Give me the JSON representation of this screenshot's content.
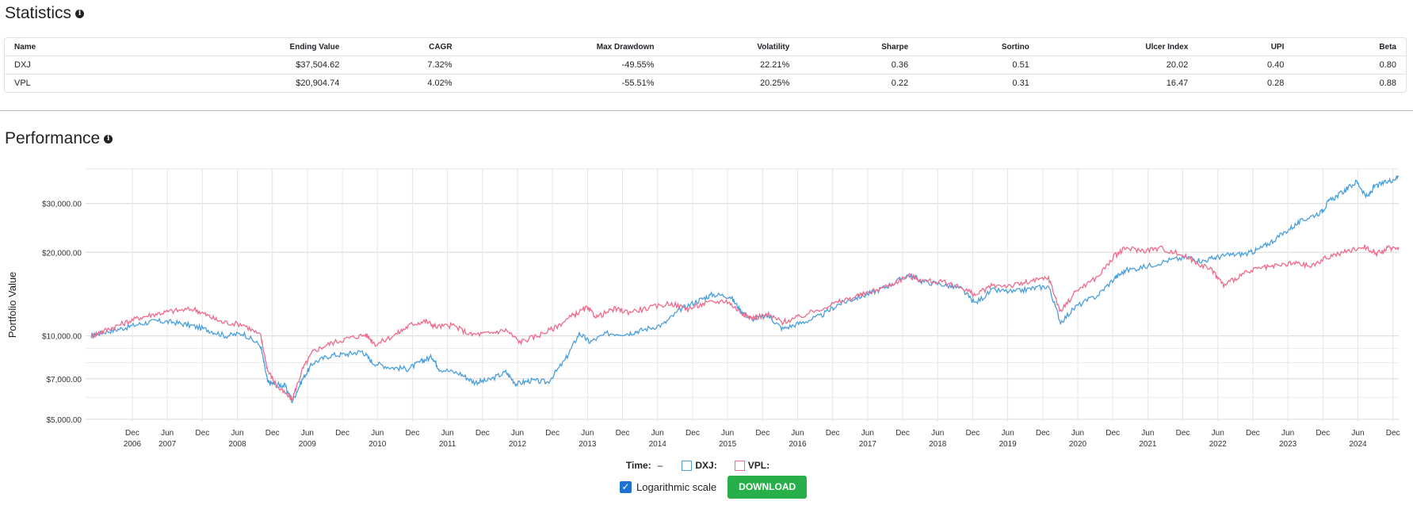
{
  "statistics": {
    "title": "Statistics",
    "info_icon": "info-icon",
    "columns": [
      "Name",
      "Ending Value",
      "CAGR",
      "Max Drawdown",
      "Volatility",
      "Sharpe",
      "Sortino",
      "Ulcer Index",
      "UPI",
      "Beta"
    ],
    "rows": [
      [
        "DXJ",
        "$37,504.62",
        "7.32%",
        "-49.55%",
        "22.21%",
        "0.36",
        "0.51",
        "20.02",
        "0.40",
        "0.80"
      ],
      [
        "VPL",
        "$20,904.74",
        "4.02%",
        "-55.51%",
        "20.25%",
        "0.22",
        "0.31",
        "16.47",
        "0.28",
        "0.88"
      ]
    ]
  },
  "performance": {
    "title": "Performance",
    "info_icon": "info-icon",
    "legend": {
      "time_label": "Time:",
      "time_value": "–"
    },
    "log_scale_label": "Logarithmic scale",
    "log_scale_checked": true,
    "download_label": "DOWNLOAD",
    "colors": {
      "DXJ": "#4a9fdc",
      "VPL": "#f06a8a",
      "download": "#27b04a",
      "checkbox": "#1e73d2"
    }
  },
  "chart_data": {
    "type": "line",
    "ylabel": "Portfolio Value",
    "xlabel": "",
    "log_scale": true,
    "grid": true,
    "y_ticks": [
      5000,
      7000,
      10000,
      20000,
      30000
    ],
    "y_tick_labels": [
      "$5,000.00",
      "$7,000.00",
      "$10,000.00",
      "$20,000.00",
      "$30,000.00"
    ],
    "ylim": [
      4900,
      40000
    ],
    "xlim": [
      2006.25,
      2025.0
    ],
    "x_ticks": [
      {
        "t": 2006.917,
        "m": "Dec",
        "y": "2006"
      },
      {
        "t": 2007.417,
        "m": "Jun",
        "y": "2007"
      },
      {
        "t": 2007.917,
        "m": "Dec",
        "y": ""
      },
      {
        "t": 2008.417,
        "m": "Jun",
        "y": "2008"
      },
      {
        "t": 2008.917,
        "m": "Dec",
        "y": ""
      },
      {
        "t": 2009.417,
        "m": "Jun",
        "y": "2009"
      },
      {
        "t": 2009.917,
        "m": "Dec",
        "y": ""
      },
      {
        "t": 2010.417,
        "m": "Jun",
        "y": "2010"
      },
      {
        "t": 2010.917,
        "m": "Dec",
        "y": ""
      },
      {
        "t": 2011.417,
        "m": "Jun",
        "y": "2011"
      },
      {
        "t": 2011.917,
        "m": "Dec",
        "y": ""
      },
      {
        "t": 2012.417,
        "m": "Jun",
        "y": "2012"
      },
      {
        "t": 2012.917,
        "m": "Dec",
        "y": ""
      },
      {
        "t": 2013.417,
        "m": "Jun",
        "y": "2013"
      },
      {
        "t": 2013.917,
        "m": "Dec",
        "y": ""
      },
      {
        "t": 2014.417,
        "m": "Jun",
        "y": "2014"
      },
      {
        "t": 2014.917,
        "m": "Dec",
        "y": ""
      },
      {
        "t": 2015.417,
        "m": "Jun",
        "y": "2015"
      },
      {
        "t": 2015.917,
        "m": "Dec",
        "y": ""
      },
      {
        "t": 2016.417,
        "m": "Jun",
        "y": "2016"
      },
      {
        "t": 2016.917,
        "m": "Dec",
        "y": ""
      },
      {
        "t": 2017.417,
        "m": "Jun",
        "y": "2017"
      },
      {
        "t": 2017.917,
        "m": "Dec",
        "y": ""
      },
      {
        "t": 2018.417,
        "m": "Jun",
        "y": "2018"
      },
      {
        "t": 2018.917,
        "m": "Dec",
        "y": ""
      },
      {
        "t": 2019.417,
        "m": "Jun",
        "y": "2019"
      },
      {
        "t": 2019.917,
        "m": "Dec",
        "y": ""
      },
      {
        "t": 2020.417,
        "m": "Jun",
        "y": "2020"
      },
      {
        "t": 2020.917,
        "m": "Dec",
        "y": ""
      },
      {
        "t": 2021.417,
        "m": "Jun",
        "y": "2021"
      },
      {
        "t": 2021.917,
        "m": "Dec",
        "y": ""
      },
      {
        "t": 2022.417,
        "m": "Jun",
        "y": "2022"
      },
      {
        "t": 2022.917,
        "m": "Dec",
        "y": ""
      },
      {
        "t": 2023.417,
        "m": "Jun",
        "y": "2023"
      },
      {
        "t": 2023.917,
        "m": "Dec",
        "y": ""
      },
      {
        "t": 2024.417,
        "m": "Jun",
        "y": "2024"
      },
      {
        "t": 2024.917,
        "m": "Dec",
        "y": ""
      }
    ],
    "series": [
      {
        "name": "DXJ",
        "points": [
          [
            2006.33,
            10000
          ],
          [
            2006.5,
            10300
          ],
          [
            2006.75,
            10600
          ],
          [
            2007.0,
            11000
          ],
          [
            2007.25,
            11300
          ],
          [
            2007.5,
            11200
          ],
          [
            2007.75,
            10900
          ],
          [
            2008.0,
            10500
          ],
          [
            2008.25,
            10000
          ],
          [
            2008.5,
            10200
          ],
          [
            2008.75,
            9200
          ],
          [
            2008.85,
            6800
          ],
          [
            2008.95,
            6700
          ],
          [
            2009.1,
            6600
          ],
          [
            2009.2,
            5800
          ],
          [
            2009.35,
            7000
          ],
          [
            2009.5,
            8000
          ],
          [
            2009.75,
            8500
          ],
          [
            2010.0,
            8600
          ],
          [
            2010.2,
            8800
          ],
          [
            2010.35,
            8000
          ],
          [
            2010.6,
            7700
          ],
          [
            2010.85,
            7600
          ],
          [
            2011.05,
            8100
          ],
          [
            2011.2,
            8400
          ],
          [
            2011.3,
            7600
          ],
          [
            2011.6,
            7300
          ],
          [
            2011.8,
            6800
          ],
          [
            2012.0,
            6900
          ],
          [
            2012.25,
            7400
          ],
          [
            2012.4,
            6700
          ],
          [
            2012.6,
            6900
          ],
          [
            2012.85,
            6800
          ],
          [
            2013.1,
            8200
          ],
          [
            2013.3,
            10200
          ],
          [
            2013.45,
            9500
          ],
          [
            2013.7,
            10200
          ],
          [
            2014.0,
            10200
          ],
          [
            2014.2,
            10500
          ],
          [
            2014.5,
            11000
          ],
          [
            2014.75,
            12500
          ],
          [
            2015.0,
            13400
          ],
          [
            2015.2,
            14100
          ],
          [
            2015.45,
            13900
          ],
          [
            2015.6,
            12400
          ],
          [
            2015.75,
            11500
          ],
          [
            2016.0,
            11800
          ],
          [
            2016.2,
            10600
          ],
          [
            2016.45,
            11100
          ],
          [
            2016.75,
            11800
          ],
          [
            2017.0,
            13000
          ],
          [
            2017.25,
            13700
          ],
          [
            2017.5,
            14400
          ],
          [
            2017.75,
            15300
          ],
          [
            2018.0,
            16600
          ],
          [
            2018.2,
            15700
          ],
          [
            2018.5,
            15300
          ],
          [
            2018.75,
            14800
          ],
          [
            2018.95,
            13100
          ],
          [
            2019.2,
            14600
          ],
          [
            2019.5,
            14400
          ],
          [
            2019.75,
            14800
          ],
          [
            2020.0,
            15100
          ],
          [
            2020.17,
            11200
          ],
          [
            2020.4,
            12800
          ],
          [
            2020.7,
            14000
          ],
          [
            2020.95,
            16200
          ],
          [
            2021.1,
            17200
          ],
          [
            2021.4,
            17800
          ],
          [
            2021.7,
            18700
          ],
          [
            2022.0,
            19200
          ],
          [
            2022.2,
            18600
          ],
          [
            2022.4,
            19200
          ],
          [
            2022.6,
            19600
          ],
          [
            2022.85,
            19800
          ],
          [
            2023.0,
            20500
          ],
          [
            2023.2,
            22000
          ],
          [
            2023.45,
            24400
          ],
          [
            2023.65,
            26300
          ],
          [
            2023.9,
            28000
          ],
          [
            2024.0,
            30500
          ],
          [
            2024.2,
            33000
          ],
          [
            2024.4,
            36000
          ],
          [
            2024.55,
            31500
          ],
          [
            2024.65,
            34500
          ],
          [
            2024.85,
            36000
          ],
          [
            2025.0,
            37500
          ]
        ]
      },
      {
        "name": "VPL",
        "points": [
          [
            2006.33,
            10000
          ],
          [
            2006.5,
            10400
          ],
          [
            2006.75,
            11000
          ],
          [
            2007.0,
            11600
          ],
          [
            2007.25,
            12000
          ],
          [
            2007.5,
            12300
          ],
          [
            2007.8,
            12500
          ],
          [
            2008.0,
            11800
          ],
          [
            2008.2,
            11200
          ],
          [
            2008.5,
            11000
          ],
          [
            2008.75,
            10000
          ],
          [
            2008.85,
            7500
          ],
          [
            2009.0,
            6500
          ],
          [
            2009.2,
            5900
          ],
          [
            2009.35,
            7600
          ],
          [
            2009.5,
            8800
          ],
          [
            2009.75,
            9400
          ],
          [
            2010.0,
            9800
          ],
          [
            2010.25,
            10100
          ],
          [
            2010.4,
            9300
          ],
          [
            2010.7,
            10200
          ],
          [
            2010.9,
            11000
          ],
          [
            2011.1,
            11300
          ],
          [
            2011.25,
            10800
          ],
          [
            2011.5,
            10900
          ],
          [
            2011.75,
            10100
          ],
          [
            2012.0,
            10200
          ],
          [
            2012.25,
            10500
          ],
          [
            2012.45,
            9500
          ],
          [
            2012.7,
            10000
          ],
          [
            2012.95,
            10700
          ],
          [
            2013.2,
            11800
          ],
          [
            2013.4,
            12600
          ],
          [
            2013.55,
            11700
          ],
          [
            2013.8,
            12500
          ],
          [
            2014.0,
            12200
          ],
          [
            2014.3,
            12600
          ],
          [
            2014.6,
            13100
          ],
          [
            2014.85,
            12500
          ],
          [
            2015.1,
            13100
          ],
          [
            2015.4,
            13400
          ],
          [
            2015.6,
            12200
          ],
          [
            2015.75,
            11600
          ],
          [
            2016.0,
            11900
          ],
          [
            2016.2,
            11200
          ],
          [
            2016.45,
            11700
          ],
          [
            2016.8,
            12700
          ],
          [
            2017.1,
            13500
          ],
          [
            2017.4,
            14200
          ],
          [
            2017.75,
            15300
          ],
          [
            2018.0,
            16500
          ],
          [
            2018.2,
            15800
          ],
          [
            2018.5,
            15600
          ],
          [
            2018.8,
            14800
          ],
          [
            2018.95,
            14000
          ],
          [
            2019.2,
            15200
          ],
          [
            2019.5,
            15200
          ],
          [
            2019.75,
            15700
          ],
          [
            2020.0,
            16200
          ],
          [
            2020.17,
            12200
          ],
          [
            2020.4,
            14600
          ],
          [
            2020.7,
            16300
          ],
          [
            2020.95,
            19500
          ],
          [
            2021.1,
            20700
          ],
          [
            2021.35,
            20300
          ],
          [
            2021.6,
            20700
          ],
          [
            2021.9,
            19600
          ],
          [
            2022.1,
            18500
          ],
          [
            2022.35,
            17100
          ],
          [
            2022.5,
            15200
          ],
          [
            2022.75,
            16600
          ],
          [
            2023.0,
            17500
          ],
          [
            2023.25,
            17800
          ],
          [
            2023.5,
            18300
          ],
          [
            2023.75,
            17800
          ],
          [
            2024.0,
            19300
          ],
          [
            2024.25,
            20100
          ],
          [
            2024.5,
            21000
          ],
          [
            2024.7,
            19800
          ],
          [
            2024.85,
            20700
          ],
          [
            2025.0,
            20900
          ]
        ]
      }
    ]
  }
}
